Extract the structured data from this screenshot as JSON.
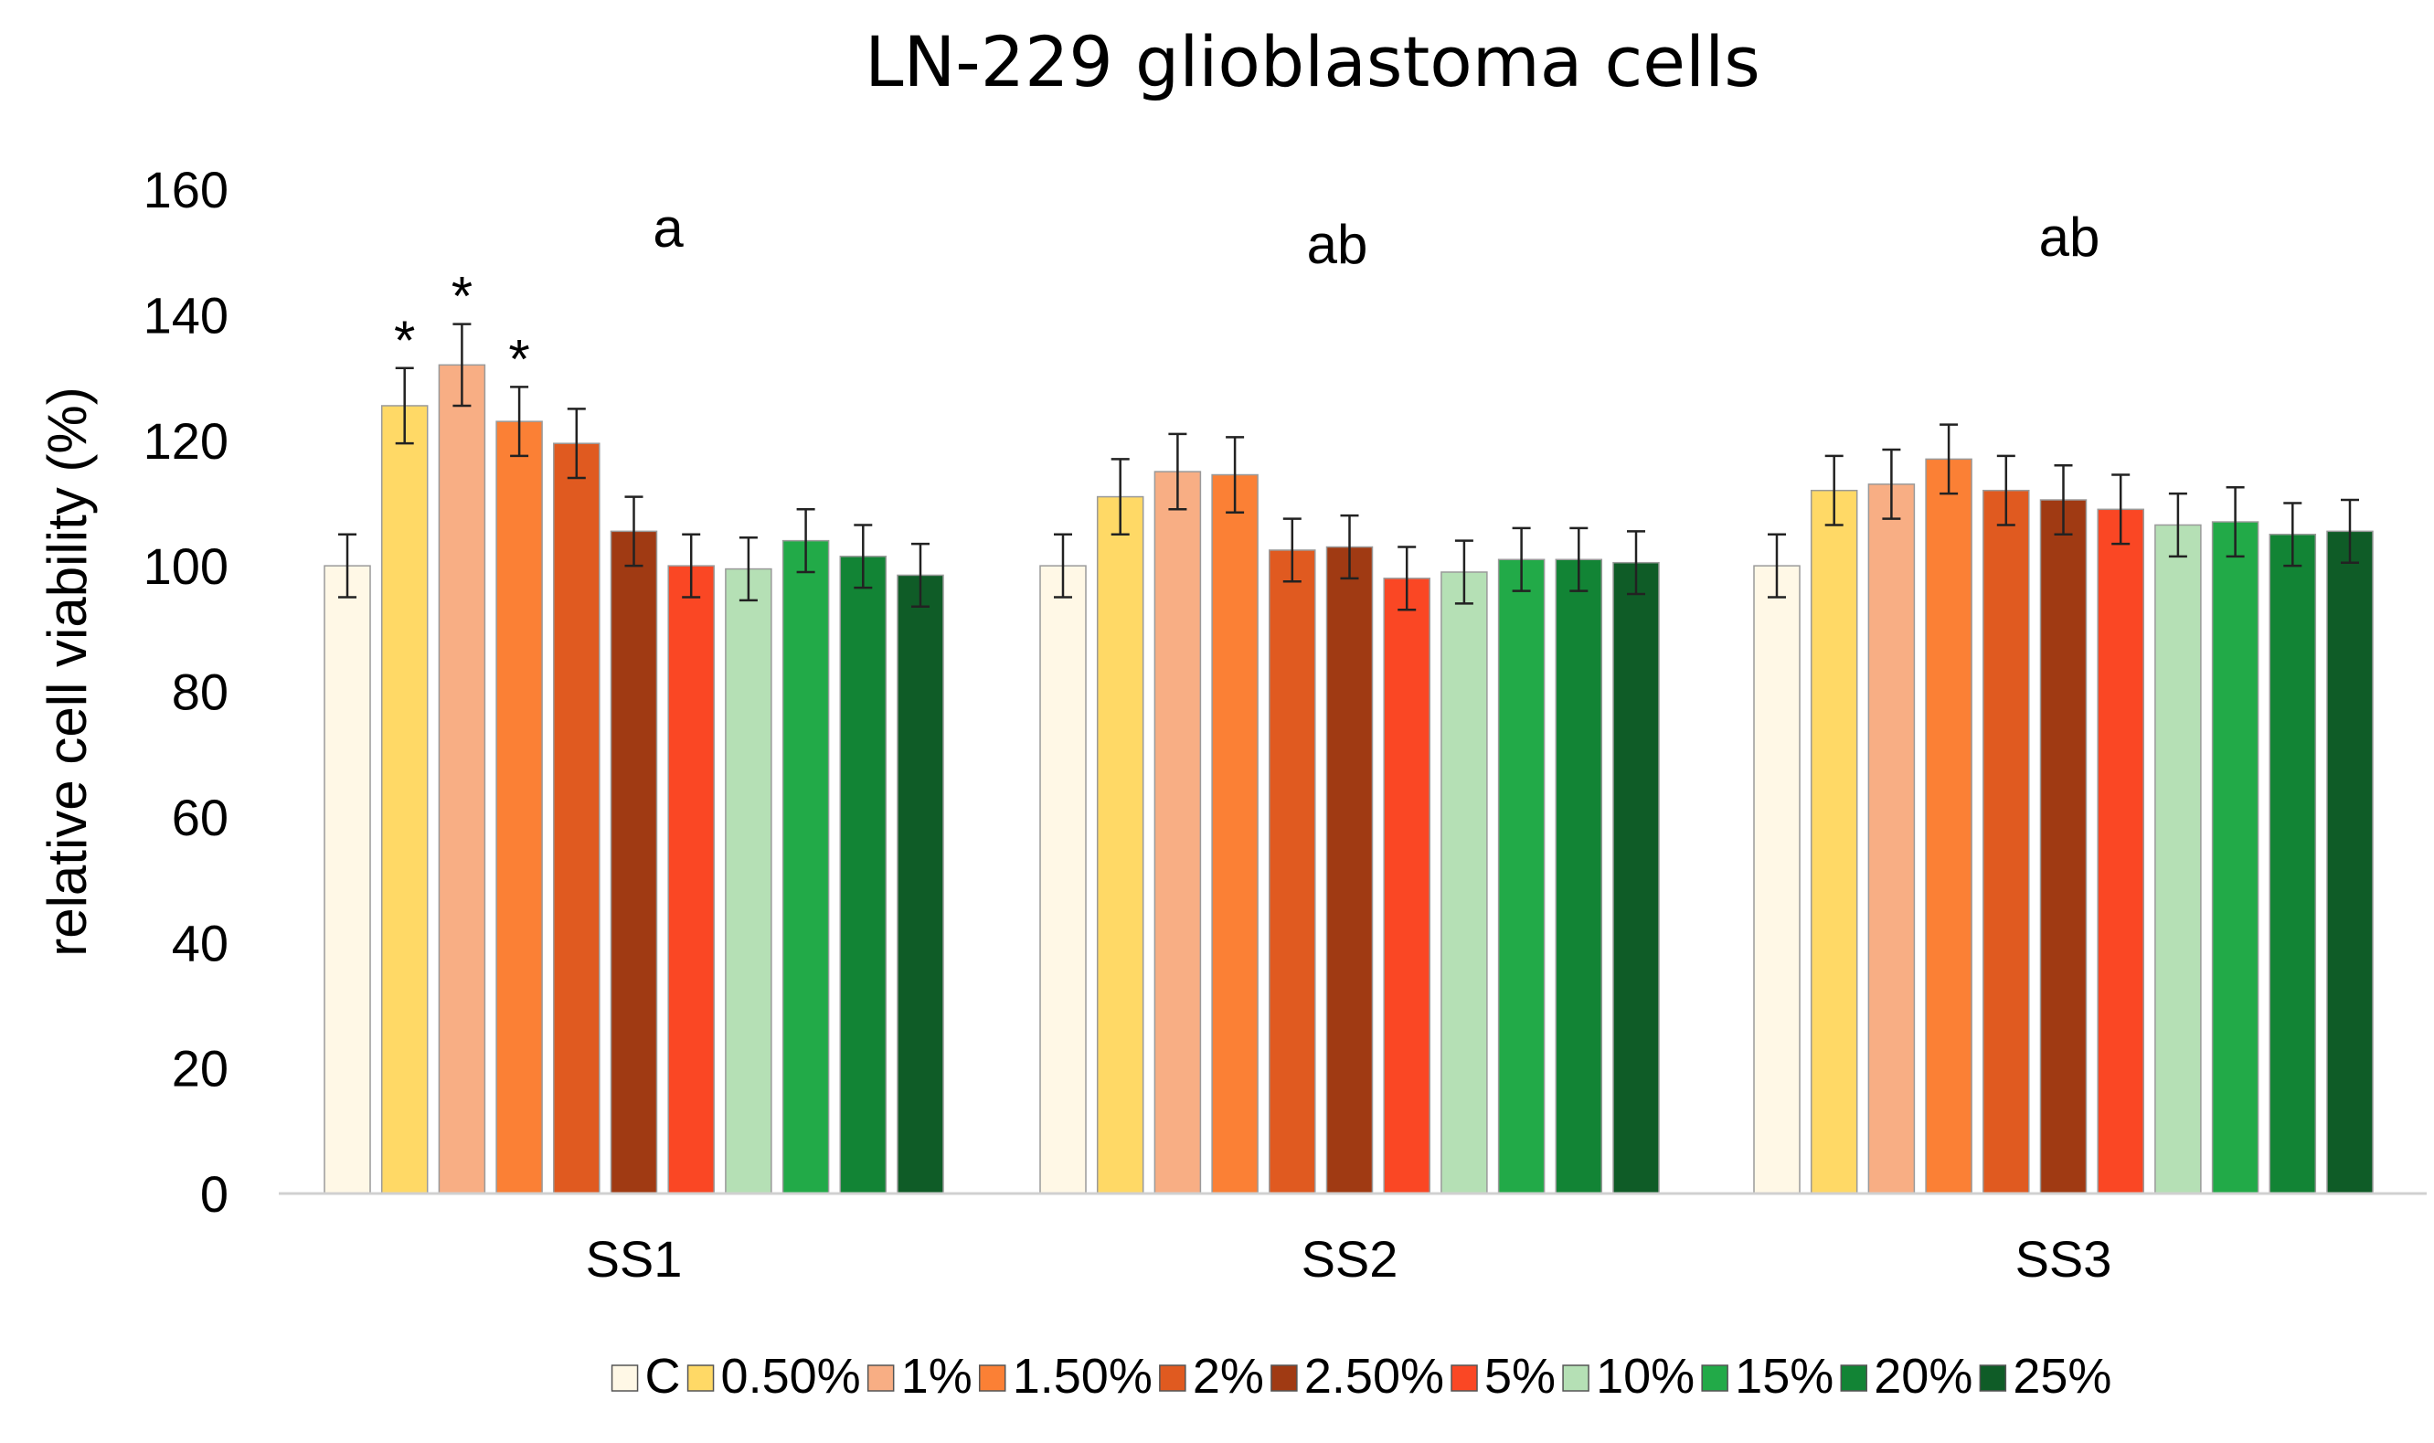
{
  "chart_data": {
    "type": "bar",
    "title": "LN-229 glioblastoma cells",
    "xlabel": "",
    "ylabel": "relative cell viability (%)",
    "ylim": [
      0,
      160
    ],
    "yticks": [
      0,
      20,
      40,
      60,
      80,
      100,
      120,
      140,
      160
    ],
    "grid": false,
    "legend_position": "bottom",
    "categories": [
      "SS1",
      "SS2",
      "SS3"
    ],
    "group_annotations": [
      "a",
      "ab",
      "ab"
    ],
    "series": [
      {
        "name": "C",
        "color": "#FFF8E6",
        "values": [
          100,
          100,
          100
        ],
        "errors": [
          5,
          5,
          5
        ],
        "markers": [
          "",
          "",
          ""
        ]
      },
      {
        "name": "0.50%",
        "color": "#FFD966",
        "values": [
          125.5,
          111,
          112
        ],
        "errors": [
          6,
          6,
          5.5
        ],
        "markers": [
          "*",
          "",
          ""
        ]
      },
      {
        "name": "1%",
        "color": "#F8AE84",
        "values": [
          132,
          115,
          113
        ],
        "errors": [
          6.5,
          6,
          5.5
        ],
        "markers": [
          "*",
          "",
          ""
        ]
      },
      {
        "name": "1.50%",
        "color": "#FB8035",
        "values": [
          123,
          114.5,
          117
        ],
        "errors": [
          5.5,
          6,
          5.5
        ],
        "markers": [
          "*",
          "",
          ""
        ]
      },
      {
        "name": "2%",
        "color": "#E05A20",
        "values": [
          119.5,
          102.5,
          112
        ],
        "errors": [
          5.5,
          5,
          5.5
        ],
        "markers": [
          "",
          "",
          ""
        ]
      },
      {
        "name": "2.50%",
        "color": "#A03A13",
        "values": [
          105.5,
          103,
          110.5
        ],
        "errors": [
          5.5,
          5,
          5.5
        ],
        "markers": [
          "",
          "",
          ""
        ]
      },
      {
        "name": "5%",
        "color": "#FA4724",
        "values": [
          100,
          98,
          109
        ],
        "errors": [
          5,
          5,
          5.5
        ],
        "markers": [
          "",
          "",
          ""
        ]
      },
      {
        "name": "10%",
        "color": "#B5E0B5",
        "values": [
          99.5,
          99,
          106.5
        ],
        "errors": [
          5,
          5,
          5
        ],
        "markers": [
          "",
          "",
          ""
        ]
      },
      {
        "name": "15%",
        "color": "#22AA48",
        "values": [
          104,
          101,
          107
        ],
        "errors": [
          5,
          5,
          5.5
        ],
        "markers": [
          "",
          "",
          ""
        ]
      },
      {
        "name": "20%",
        "color": "#128435",
        "values": [
          101.5,
          101,
          105
        ],
        "errors": [
          5,
          5,
          5
        ],
        "markers": [
          "",
          "",
          ""
        ]
      },
      {
        "name": "25%",
        "color": "#0F5C27",
        "values": [
          98.5,
          100.5,
          105.5
        ],
        "errors": [
          5,
          5,
          5
        ],
        "markers": [
          "",
          "",
          ""
        ]
      }
    ]
  }
}
